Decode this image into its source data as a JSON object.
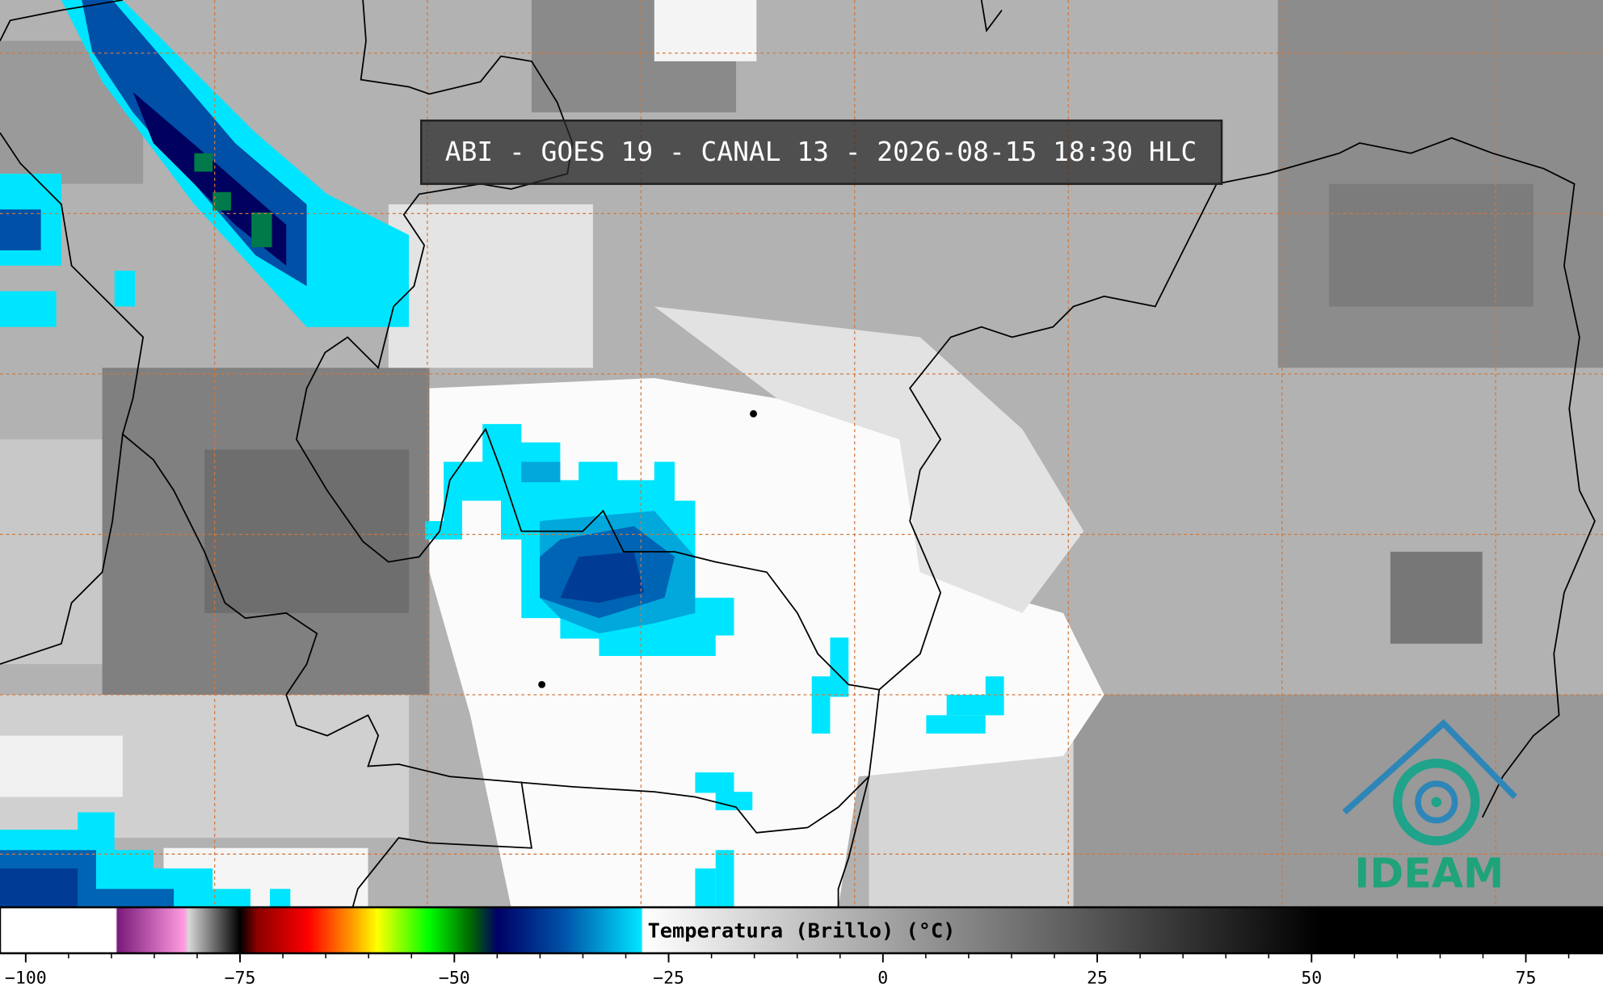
{
  "title": "ABI - GOES 19 - CANAL 13 - 2026-08-15 18:30 HLC",
  "colorbar": {
    "label": "Temperatura (Brillo) (°C)",
    "lim": [
      -103,
      84
    ],
    "ticks": [
      {
        "value": -100,
        "label": "−100"
      },
      {
        "value": -75,
        "label": "−75"
      },
      {
        "value": -50,
        "label": "−50"
      },
      {
        "value": -25,
        "label": "−25"
      },
      0,
      25,
      50,
      75
    ],
    "minor_ticks": [
      -100,
      -95,
      -90,
      -85,
      -80,
      -75,
      -70,
      -65,
      -60,
      -55,
      -50,
      -45,
      -40,
      -35,
      -30,
      -25,
      -20,
      -15,
      -10,
      -5,
      0,
      5,
      10,
      15,
      20,
      25,
      30,
      35,
      40,
      45,
      50,
      55,
      60,
      65,
      70,
      75,
      80
    ],
    "colormap": [
      [
        -103,
        "#ffffff"
      ],
      [
        -89.5,
        "#ffffff"
      ],
      [
        -89.3,
        "#7a1a7a"
      ],
      [
        -81.5,
        "#ff9be0"
      ],
      [
        -81,
        "#d8d8d8"
      ],
      [
        -75,
        "#000000"
      ],
      [
        -73,
        "#8b0000"
      ],
      [
        -67,
        "#ff0000"
      ],
      [
        -62,
        "#ff9900"
      ],
      [
        -59,
        "#ffff00"
      ],
      [
        -53,
        "#00ff00"
      ],
      [
        -48,
        "#006400"
      ],
      [
        -45,
        "#000066"
      ],
      [
        -37,
        "#0055aa"
      ],
      [
        -28.2,
        "#00e5ff"
      ],
      [
        -28,
        "#ffffff"
      ],
      [
        51,
        "#000000"
      ],
      [
        84,
        "#000000"
      ]
    ]
  },
  "logo": {
    "text": "IDEAM"
  }
}
